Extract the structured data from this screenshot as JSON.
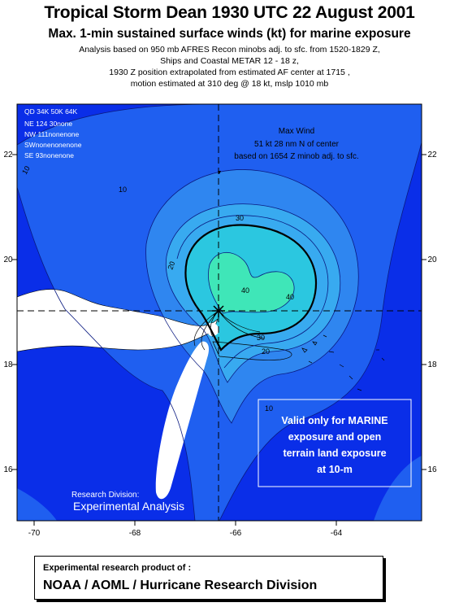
{
  "header": {
    "title": "Tropical Storm Dean 1930 UTC 22 August 2001",
    "subtitle": "Max. 1-min sustained surface winds (kt) for marine exposure",
    "analysis_lines": [
      "Analysis based on 950 mb AFRES Recon minobs adj. to sfc. from  1520-1829 Z,",
      "Ships  and Coastal METAR 12 - 18 z,",
      "1930 Z  position extrapolated from estimated  AF center at 1715 ,",
      "motion estimated at 310 deg @  18 kt, mslp 1010 mb"
    ]
  },
  "map": {
    "lon_ticks": [
      "-70",
      "-68",
      "-66",
      "-64"
    ],
    "lat_ticks": [
      "22",
      "20",
      "18",
      "16"
    ],
    "wind_radii": {
      "header": "QD  34K  50K  64K",
      "rows": [
        "NE  124   30none",
        "NW  111nonenone",
        "SWnonenonenone",
        "SE   93nonenone"
      ]
    },
    "max_wind": {
      "title": "Max Wind",
      "line1": "51 kt  28 nm N of center",
      "line2": "based on 1654 Z minob  adj. to sfc."
    },
    "contour_labels": [
      "10",
      "10",
      "20",
      "30",
      "40",
      "40",
      "30",
      "20",
      "10"
    ],
    "validity_note": "Valid only for MARINE exposure and open terrain land exposure at 10-m",
    "watermark_line1": "Research Division:",
    "watermark_line2": "Experimental Analysis",
    "colors": {
      "ocean_base": "#0a2ee8",
      "contour_10_20": "#1f5ff0",
      "contour_20_30": "#2f86f0",
      "contour_30_40": "#38aaf0",
      "contour_40_50": "#22d8d0",
      "contour_50": "#46f0b0",
      "land": "#ffffff"
    }
  },
  "footer": {
    "line1": "Experimental research product of :",
    "line2": "NOAA / AOML / Hurricane Research Division"
  }
}
